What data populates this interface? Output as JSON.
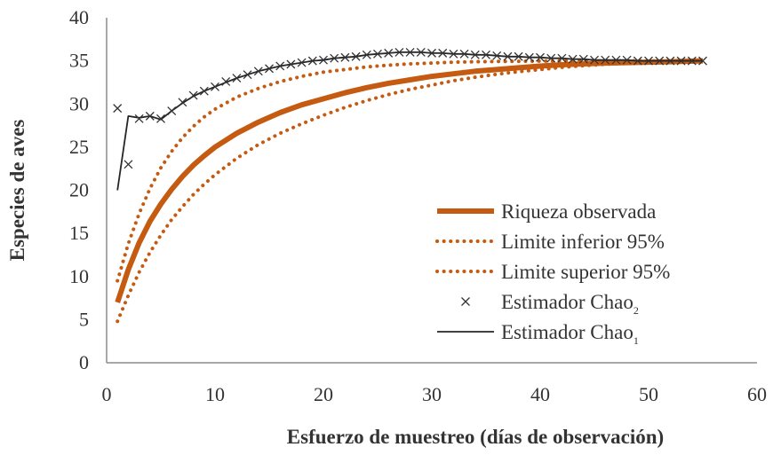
{
  "chart_data": {
    "type": "line",
    "title": "",
    "xlabel": "Esfuerzo de muestreo (días de observación)",
    "ylabel": "Especies de aves",
    "xlim": [
      0,
      60
    ],
    "ylim": [
      0,
      40
    ],
    "xticks": [
      0,
      10,
      20,
      30,
      40,
      50,
      60
    ],
    "yticks": [
      0,
      5,
      10,
      15,
      20,
      25,
      30,
      35,
      40
    ],
    "grid": false,
    "legend_position": "lower-right",
    "colors": {
      "observed": "#c55a11",
      "bounds": "#c55a11",
      "chao": "#262626"
    },
    "series": [
      {
        "name": "Riqueza observada",
        "style": "thick-solid",
        "x": [
          1,
          2,
          3,
          4,
          5,
          6,
          7,
          8,
          9,
          10,
          12,
          14,
          16,
          18,
          20,
          22,
          24,
          26,
          28,
          30,
          32,
          34,
          36,
          38,
          40,
          42,
          44,
          46,
          48,
          50,
          52,
          55
        ],
        "values": [
          7,
          10.8,
          13.9,
          16.4,
          18.4,
          20.1,
          21.6,
          22.9,
          24.0,
          25.0,
          26.6,
          27.9,
          29.0,
          29.9,
          30.6,
          31.3,
          31.9,
          32.4,
          32.8,
          33.2,
          33.5,
          33.8,
          34.0,
          34.2,
          34.4,
          34.55,
          34.65,
          34.75,
          34.8,
          34.85,
          34.9,
          35
        ]
      },
      {
        "name": "Limite inferior 95%",
        "style": "dotted",
        "x": [
          1,
          2,
          3,
          4,
          5,
          6,
          7,
          8,
          9,
          10,
          12,
          14,
          16,
          18,
          20,
          22,
          24,
          26,
          28,
          30,
          32,
          34,
          36,
          38,
          40,
          42,
          44,
          46,
          48,
          50,
          52,
          55
        ],
        "values": [
          4.8,
          7.8,
          10.5,
          12.8,
          14.8,
          16.6,
          18.1,
          19.5,
          20.7,
          21.8,
          23.7,
          25.3,
          26.6,
          27.7,
          28.7,
          29.6,
          30.4,
          31.1,
          31.7,
          32.2,
          32.7,
          33.1,
          33.45,
          33.75,
          34.0,
          34.25,
          34.45,
          34.6,
          34.72,
          34.82,
          34.9,
          35
        ]
      },
      {
        "name": "Limite superior 95%",
        "style": "dotted",
        "x": [
          1,
          2,
          3,
          4,
          5,
          6,
          7,
          8,
          9,
          10,
          12,
          14,
          16,
          18,
          20,
          22,
          24,
          26,
          28,
          30,
          32,
          34,
          36,
          38,
          40,
          42,
          44,
          46,
          48,
          50,
          52,
          55
        ],
        "values": [
          9.5,
          13.8,
          17.3,
          20.2,
          22.6,
          24.5,
          26.1,
          27.4,
          28.5,
          29.4,
          30.8,
          31.8,
          32.6,
          33.2,
          33.7,
          34.0,
          34.3,
          34.5,
          34.65,
          34.75,
          34.85,
          34.9,
          34.93,
          34.95,
          34.97,
          34.98,
          34.99,
          35,
          35,
          35,
          35,
          35
        ]
      },
      {
        "name": "Estimador Chao",
        "name_subscript": "2",
        "style": "markers-x",
        "x": [
          1,
          2,
          3,
          4,
          5,
          6,
          7,
          8,
          9,
          10,
          11,
          12,
          13,
          14,
          15,
          16,
          17,
          18,
          19,
          20,
          21,
          22,
          23,
          24,
          25,
          26,
          27,
          28,
          29,
          30,
          31,
          32,
          33,
          34,
          35,
          36,
          37,
          38,
          39,
          40,
          41,
          42,
          43,
          44,
          45,
          46,
          47,
          48,
          49,
          50,
          51,
          52,
          53,
          54,
          55
        ],
        "values": [
          29.5,
          23,
          28.3,
          28.6,
          28.3,
          29.2,
          30.2,
          31,
          31.5,
          32,
          32.6,
          33,
          33.4,
          33.8,
          34.1,
          34.4,
          34.6,
          34.8,
          35,
          35.1,
          35.3,
          35.4,
          35.5,
          35.7,
          35.8,
          35.9,
          36,
          36,
          36,
          35.9,
          35.9,
          35.8,
          35.8,
          35.7,
          35.7,
          35.6,
          35.5,
          35.5,
          35.4,
          35.4,
          35.3,
          35.3,
          35.2,
          35.2,
          35.1,
          35.1,
          35.1,
          35.1,
          35,
          35,
          35,
          35,
          35,
          35,
          35
        ]
      },
      {
        "name": "Estimador Chao",
        "name_subscript": "1",
        "style": "thin-solid",
        "x": [
          1,
          2,
          3,
          4,
          5,
          6,
          7,
          8,
          9,
          10,
          11,
          12,
          13,
          14,
          15,
          16,
          17,
          18,
          19,
          20,
          21,
          22,
          23,
          24,
          25,
          26,
          27,
          28,
          29,
          30,
          31,
          32,
          33,
          34,
          35,
          36,
          37,
          38,
          39,
          40,
          41,
          42,
          43,
          44,
          45,
          46,
          47,
          48,
          49,
          50,
          51,
          52,
          53,
          54,
          55
        ],
        "values": [
          20,
          28.6,
          28.4,
          28.6,
          28.2,
          29.2,
          30.1,
          30.9,
          31.5,
          32,
          32.5,
          33,
          33.4,
          33.8,
          34.1,
          34.4,
          34.6,
          34.8,
          35,
          35.1,
          35.3,
          35.4,
          35.5,
          35.7,
          35.8,
          35.9,
          36,
          36,
          36,
          35.9,
          35.9,
          35.8,
          35.8,
          35.7,
          35.7,
          35.6,
          35.5,
          35.5,
          35.4,
          35.4,
          35.3,
          35.3,
          35.2,
          35.2,
          35.1,
          35.1,
          35.1,
          35.1,
          35,
          35,
          35,
          35,
          35,
          35,
          35
        ]
      }
    ]
  }
}
